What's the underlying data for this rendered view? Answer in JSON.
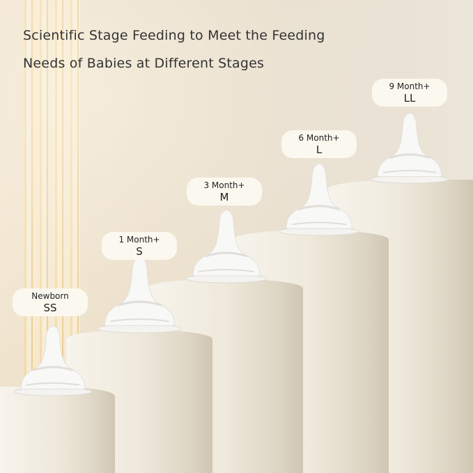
{
  "headline": {
    "line1": "Scientific Stage Feeding to Meet the Feeding",
    "line2": "Needs of Babies at Different Stages"
  },
  "stages": [
    {
      "age": "Newborn",
      "size": "SS"
    },
    {
      "age": "1 Month+",
      "size": "S"
    },
    {
      "age": "3 Month+",
      "size": "M"
    },
    {
      "age": "6 Month+",
      "size": "L"
    },
    {
      "age": "9 Month+",
      "size": "LL"
    }
  ]
}
